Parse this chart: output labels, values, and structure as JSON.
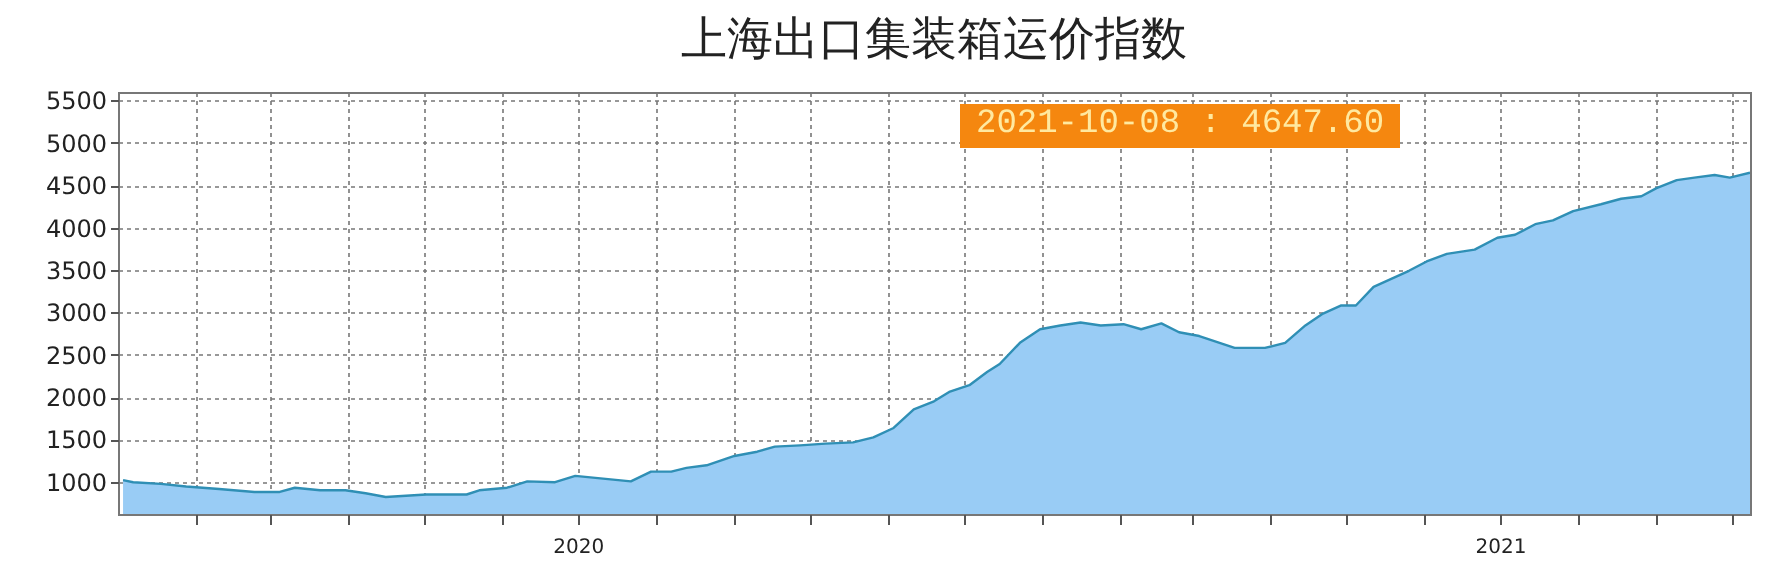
{
  "chart_data": {
    "type": "area",
    "title": "上海出口集装箱运价指数",
    "x": [
      "2020-01-03",
      "2020-01-07",
      "2020-01-18",
      "2020-01-28",
      "2020-02-10",
      "2020-02-24",
      "2020-03-05",
      "2020-03-11",
      "2020-03-21",
      "2020-03-31",
      "2020-04-08",
      "2020-04-16",
      "2020-04-24",
      "2020-05-02",
      "2020-05-18",
      "2020-05-23",
      "2020-06-03",
      "2020-06-11",
      "2020-06-22",
      "2020-06-30",
      "2020-07-10",
      "2020-07-22",
      "2020-07-30",
      "2020-08-07",
      "2020-08-13",
      "2020-08-21",
      "2020-09-01",
      "2020-09-10",
      "2020-09-17",
      "2020-09-27",
      "2020-10-07",
      "2020-10-18",
      "2020-10-26",
      "2020-11-03",
      "2020-11-11",
      "2020-11-19",
      "2020-11-25",
      "2020-12-03",
      "2020-12-10",
      "2020-12-15",
      "2020-12-23",
      "2020-12-31",
      "2021-01-08",
      "2021-01-16",
      "2021-01-24",
      "2021-02-02",
      "2021-02-09",
      "2021-02-17",
      "2021-02-24",
      "2021-03-04",
      "2021-03-18",
      "2021-03-30",
      "2021-04-07",
      "2021-04-15",
      "2021-04-22",
      "2021-04-29",
      "2021-05-05",
      "2021-05-12",
      "2021-05-19",
      "2021-05-26",
      "2021-06-02",
      "2021-06-10",
      "2021-06-21",
      "2021-06-30",
      "2021-07-07",
      "2021-07-15",
      "2021-07-22",
      "2021-07-30",
      "2021-08-10",
      "2021-08-18",
      "2021-08-26",
      "2021-09-01",
      "2021-09-09",
      "2021-09-16",
      "2021-09-24",
      "2021-09-30",
      "2021-10-08"
    ],
    "series": [
      {
        "color": "#99ccf5",
        "values": [
          1020,
          995,
          975,
          945,
          915,
          880,
          880,
          930,
          900,
          900,
          865,
          820,
          835,
          850,
          850,
          900,
          930,
          1005,
          995,
          1070,
          1040,
          1005,
          1120,
          1120,
          1165,
          1195,
          1305,
          1355,
          1415,
          1430,
          1450,
          1465,
          1525,
          1635,
          1855,
          1950,
          2060,
          2140,
          2295,
          2390,
          2640,
          2800,
          2845,
          2880,
          2845,
          2860,
          2800,
          2870,
          2765,
          2720,
          2580,
          2580,
          2640,
          2845,
          2985,
          3080,
          3080,
          3300,
          3395,
          3490,
          3600,
          3690,
          3740,
          3880,
          3915,
          4040,
          4085,
          4195,
          4275,
          4340,
          4370,
          4465,
          4560,
          4590,
          4620,
          4590,
          4647.6
        ]
      }
    ],
    "xlim": [
      "2020-01-01",
      "2021-10-08"
    ],
    "xticks": [
      {
        "value": "2020-02-01",
        "label": null
      },
      {
        "value": "2020-03-01",
        "label": null
      },
      {
        "value": "2020-04-01",
        "label": null
      },
      {
        "value": "2020-05-01",
        "label": null
      },
      {
        "value": "2020-06-01",
        "label": null
      },
      {
        "value": "2020-07-01",
        "label": "2020"
      },
      {
        "value": "2020-08-01",
        "label": null
      },
      {
        "value": "2020-09-01",
        "label": null
      },
      {
        "value": "2020-10-01",
        "label": null
      },
      {
        "value": "2020-11-01",
        "label": null
      },
      {
        "value": "2020-12-01",
        "label": null
      },
      {
        "value": "2021-01-01",
        "label": null
      },
      {
        "value": "2021-02-01",
        "label": null
      },
      {
        "value": "2021-03-01",
        "label": null
      },
      {
        "value": "2021-04-01",
        "label": null
      },
      {
        "value": "2021-05-01",
        "label": null
      },
      {
        "value": "2021-06-01",
        "label": null
      },
      {
        "value": "2021-07-01",
        "label": "2021"
      },
      {
        "value": "2021-08-01",
        "label": null
      },
      {
        "value": "2021-09-01",
        "label": null
      },
      {
        "value": "2021-10-01",
        "label": null
      }
    ],
    "ylim": [
      620,
      5600
    ],
    "yticks": [
      1000,
      1500,
      2000,
      2500,
      3000,
      3500,
      4000,
      4500,
      5000,
      5500
    ],
    "grid": true,
    "annotations": [
      "2021-10-08 : 4647.60"
    ]
  }
}
